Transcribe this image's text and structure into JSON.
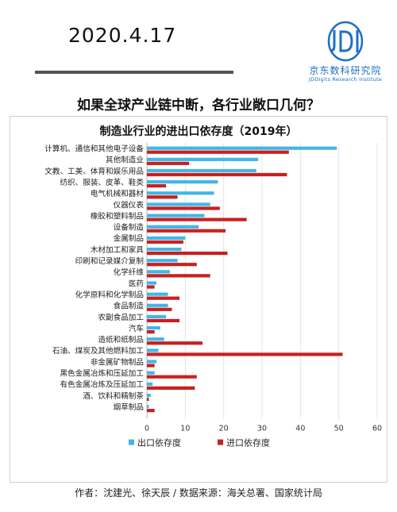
{
  "header": {
    "date": "2020.4.17",
    "logo_cn": "京东数科研究院",
    "logo_en": "JDDigits Research Institute",
    "headline": "如果全球产业链中断，各行业敞口几何？"
  },
  "footer": {
    "credit": "作者：沈建光、徐天辰 / 数据来源：海关总署、国家统计局"
  },
  "colors": {
    "export": "#41b6e6",
    "import": "#c8201f",
    "logo": "#1f6fc1"
  },
  "chart_data": {
    "type": "bar",
    "orientation": "horizontal",
    "title": "制造业行业的进出口依存度（2019年）",
    "categories": [
      "计算机、通信和其他电子设备",
      "其他制造业",
      "文教、工美、体育和娱乐用品",
      "纺织、服装、皮革、鞋类",
      "电气机械和器材",
      "仪器仪表",
      "橡胶和塑料制品",
      "设备制造",
      "金属制品",
      "木材加工和家具",
      "印刷和记录媒介复制",
      "化学纤维",
      "医药",
      "化学原料和化学制品",
      "食品制造",
      "农副食品加工",
      "汽车",
      "造纸和纸制品",
      "石油、煤炭及其他燃料加工",
      "非金属矿物制品",
      "黑色金属冶炼和压延加工",
      "有色金属冶炼及压延加工",
      "酒、饮料和精制茶",
      "烟草制品"
    ],
    "series": [
      {
        "name": "出口依存度",
        "values": [
          49.5,
          29,
          28.5,
          18.5,
          17.5,
          16.5,
          15,
          13.5,
          10,
          9,
          8,
          6,
          2.5,
          5.5,
          5.5,
          5,
          3.5,
          4.5,
          3,
          2.5,
          2,
          1.5,
          1,
          0.5
        ]
      },
      {
        "name": "进口依存度",
        "values": [
          37,
          11,
          36.5,
          5,
          8,
          19,
          26,
          20.5,
          9.5,
          21,
          13,
          16.5,
          2,
          8.5,
          6.5,
          8.5,
          2,
          14.5,
          51,
          2,
          13,
          12.5,
          0.5,
          2
        ]
      }
    ],
    "xlim": [
      0,
      60
    ],
    "xticks": [
      0,
      10,
      20,
      30,
      40,
      50,
      60
    ],
    "legend_position": "bottom"
  }
}
